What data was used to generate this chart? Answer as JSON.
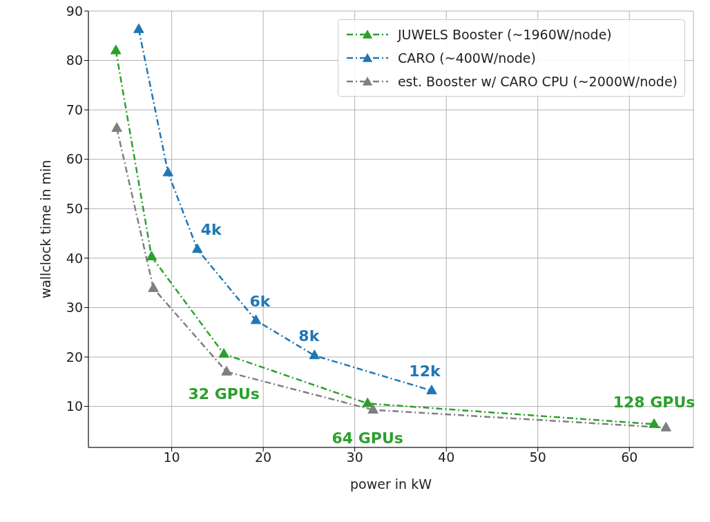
{
  "chart_data": {
    "type": "line",
    "xlabel": "power in kW",
    "ylabel": "wallclock time in min",
    "xlim": [
      0.9,
      67
    ],
    "xticks": [
      10,
      20,
      30,
      40,
      50,
      60
    ],
    "ylim": [
      1.7,
      90
    ],
    "yticks": [
      10,
      20,
      30,
      40,
      50,
      60,
      70,
      80,
      90
    ],
    "grid": true,
    "legend": "top right",
    "marker": "triangle",
    "line_style": "dashed",
    "series": [
      {
        "name": "JUWELS Booster (~1960W/node)",
        "color": "#2ca02c",
        "x": [
          3.9,
          7.8,
          15.7,
          31.4,
          62.7
        ],
        "values": [
          82,
          40.3,
          20.6,
          10.6,
          6.4
        ]
      },
      {
        "name": "CARO (~400W/node)",
        "color": "#1f77b4",
        "x": [
          6.4,
          9.6,
          12.8,
          19.2,
          25.6,
          38.4
        ],
        "values": [
          86.3,
          57.3,
          41.8,
          27.4,
          20.3,
          13.2
        ]
      },
      {
        "name": "est. Booster w/ CARO CPU (~2000W/node)",
        "color": "#7f7f7f",
        "x": [
          4,
          8,
          16,
          32,
          64
        ],
        "values": [
          66.3,
          33.9,
          17,
          9.3,
          5.7
        ]
      }
    ],
    "annotations": [
      {
        "text": "4k",
        "x": 12.8,
        "y": 41.8
      },
      {
        "text": "6k",
        "x": 19.2,
        "y": 27.4
      },
      {
        "text": "8k",
        "x": 25.6,
        "y": 20.3
      },
      {
        "text": "12k",
        "x": 38.4,
        "y": 13.2
      },
      {
        "text": "32 GPUs",
        "x": 15.7,
        "y": 20.6
      },
      {
        "text": "64 GPUs",
        "x": 31.4,
        "y": 10.6
      },
      {
        "text": "128 GPUs",
        "x": 62.7,
        "y": 6.4
      }
    ]
  }
}
